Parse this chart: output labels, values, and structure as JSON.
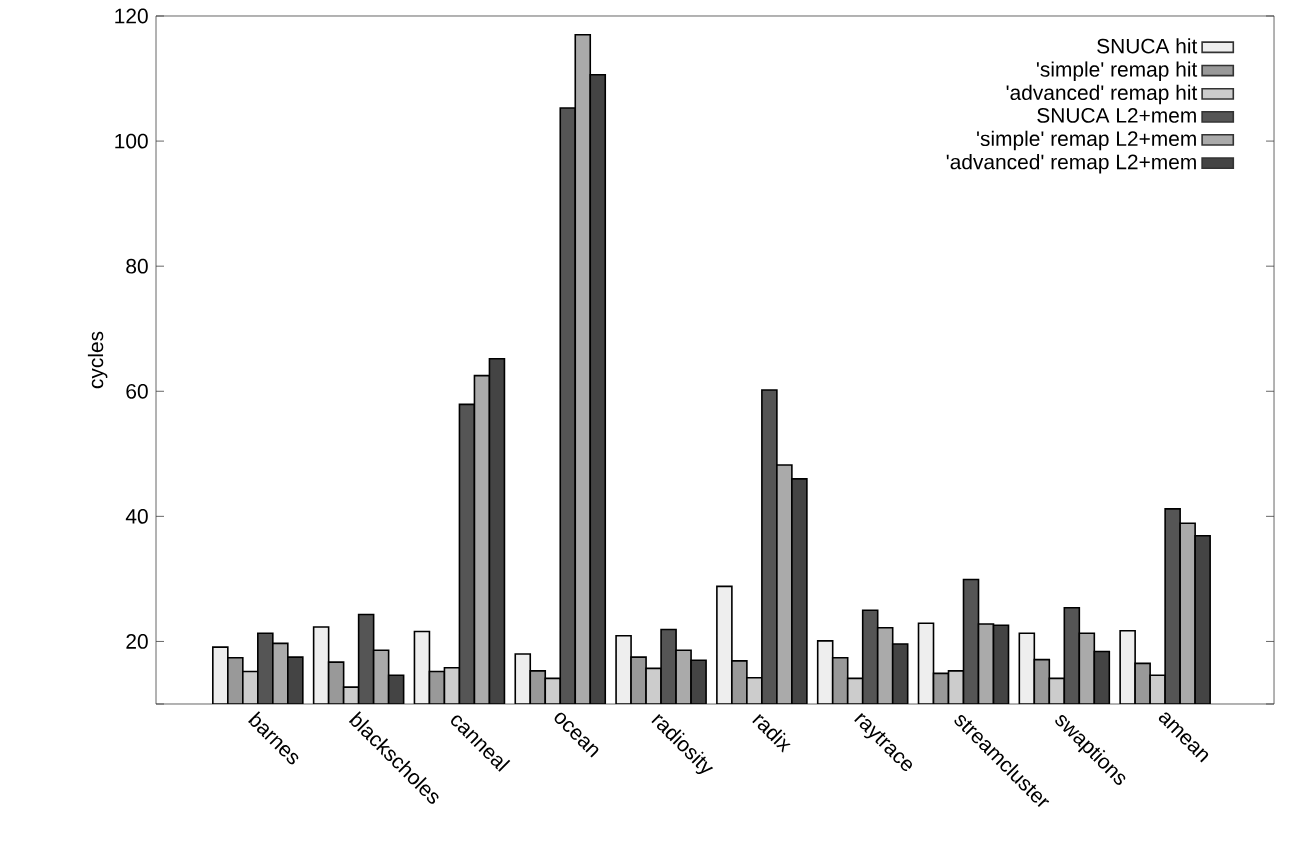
{
  "chart_data": {
    "type": "bar",
    "ylabel": "cycles",
    "categories": [
      "barnes",
      "blackscholes",
      "canneal",
      "ocean",
      "radiosity",
      "radix",
      "raytrace",
      "streamcluster",
      "swaptions",
      "amean"
    ],
    "series": [
      {
        "name": "SNUCA hit",
        "color": "#eeeeee",
        "values": [
          19.1,
          22.3,
          21.6,
          18.0,
          20.9,
          28.8,
          20.1,
          22.9,
          21.3,
          21.7
        ]
      },
      {
        "name": "'simple' remap hit",
        "color": "#999999",
        "values": [
          17.4,
          16.7,
          15.2,
          15.3,
          17.5,
          16.9,
          17.4,
          14.9,
          17.1,
          16.5
        ]
      },
      {
        "name": "'advanced' remap hit",
        "color": "#cccccc",
        "values": [
          15.2,
          12.7,
          15.8,
          14.1,
          15.7,
          14.2,
          14.1,
          15.3,
          14.1,
          14.6
        ]
      },
      {
        "name": "SNUCA L2+mem",
        "color": "#555555",
        "values": [
          21.3,
          24.3,
          57.9,
          105.3,
          21.9,
          60.2,
          25.0,
          29.9,
          25.4,
          41.2
        ]
      },
      {
        "name": "'simple' remap L2+mem",
        "color": "#aaaaaa",
        "values": [
          19.7,
          18.6,
          62.5,
          117,
          18.6,
          48.2,
          22.2,
          22.8,
          21.3,
          38.9
        ]
      },
      {
        "name": "'advanced' remap L2+mem",
        "color": "#444444",
        "values": [
          17.5,
          14.6,
          65.2,
          110.6,
          17.0,
          46.0,
          19.6,
          22.6,
          18.4,
          36.9
        ]
      }
    ],
    "ylim": [
      10,
      120
    ],
    "yticks": [
      {
        "value": 10,
        "label": null
      },
      20,
      40,
      60,
      80,
      100,
      120
    ],
    "legend": "top right",
    "grid": false
  }
}
